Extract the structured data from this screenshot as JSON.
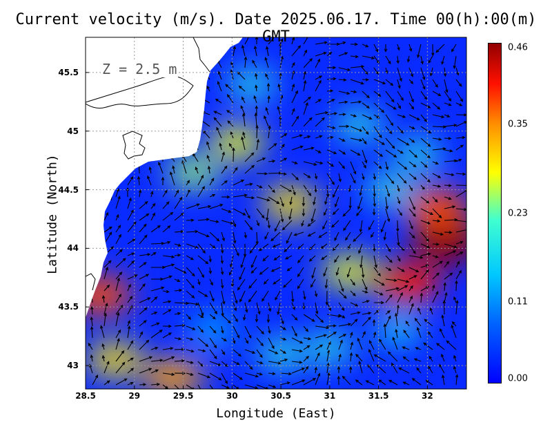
{
  "chart_data": {
    "type": "heatmap",
    "title": "Current velocity (m/s). Date 2025.06.17. Time 00(h):00(m) GMT",
    "xlabel": "Longitude (East)",
    "ylabel": "Latitude (North)",
    "annotation": "Z = 2.5 m",
    "xlim": [
      28.5,
      32.4
    ],
    "ylim": [
      42.8,
      45.8
    ],
    "x_ticks": [
      "28.5",
      "29",
      "29.5",
      "30",
      "30.5",
      "31",
      "31.5",
      "32"
    ],
    "y_ticks": [
      "43",
      "43.5",
      "44",
      "44.5",
      "45",
      "45.5"
    ],
    "colorbar": {
      "min": 0.0,
      "max": 0.46,
      "labels": [
        "0.46",
        "0.35",
        "0.23",
        "0.11",
        "0.00"
      ],
      "label_values": [
        0.46,
        0.35,
        0.23,
        0.11,
        0.0
      ],
      "colors": [
        "#0000ff",
        "#0080ff",
        "#00e0ff",
        "#ffff00",
        "#ff8000",
        "#ff0000",
        "#8b0000"
      ]
    },
    "grid": true,
    "hotspots": [
      {
        "lon": 32.2,
        "lat": 44.05,
        "speed": 0.46
      },
      {
        "lon": 31.8,
        "lat": 43.7,
        "speed": 0.4
      },
      {
        "lon": 32.1,
        "lat": 44.35,
        "speed": 0.38
      },
      {
        "lon": 28.65,
        "lat": 43.6,
        "speed": 0.38
      },
      {
        "lon": 28.8,
        "lat": 43.05,
        "speed": 0.3
      },
      {
        "lon": 29.4,
        "lat": 42.9,
        "speed": 0.34
      },
      {
        "lon": 30.6,
        "lat": 44.38,
        "speed": 0.3
      },
      {
        "lon": 30.05,
        "lat": 44.9,
        "speed": 0.28
      },
      {
        "lon": 29.6,
        "lat": 44.65,
        "speed": 0.25
      },
      {
        "lon": 31.2,
        "lat": 43.8,
        "speed": 0.28
      },
      {
        "lon": 30.2,
        "lat": 45.4,
        "speed": 0.2
      },
      {
        "lon": 31.3,
        "lat": 45.05,
        "speed": 0.2
      },
      {
        "lon": 31.0,
        "lat": 43.15,
        "speed": 0.2
      },
      {
        "lon": 29.8,
        "lat": 43.3,
        "speed": 0.15
      },
      {
        "lon": 30.5,
        "lat": 43.1,
        "speed": 0.2
      },
      {
        "lon": 31.9,
        "lat": 44.8,
        "speed": 0.2
      },
      {
        "lon": 31.7,
        "lat": 43.3,
        "speed": 0.18
      },
      {
        "lon": 31.6,
        "lat": 44.5,
        "speed": 0.2
      }
    ]
  }
}
